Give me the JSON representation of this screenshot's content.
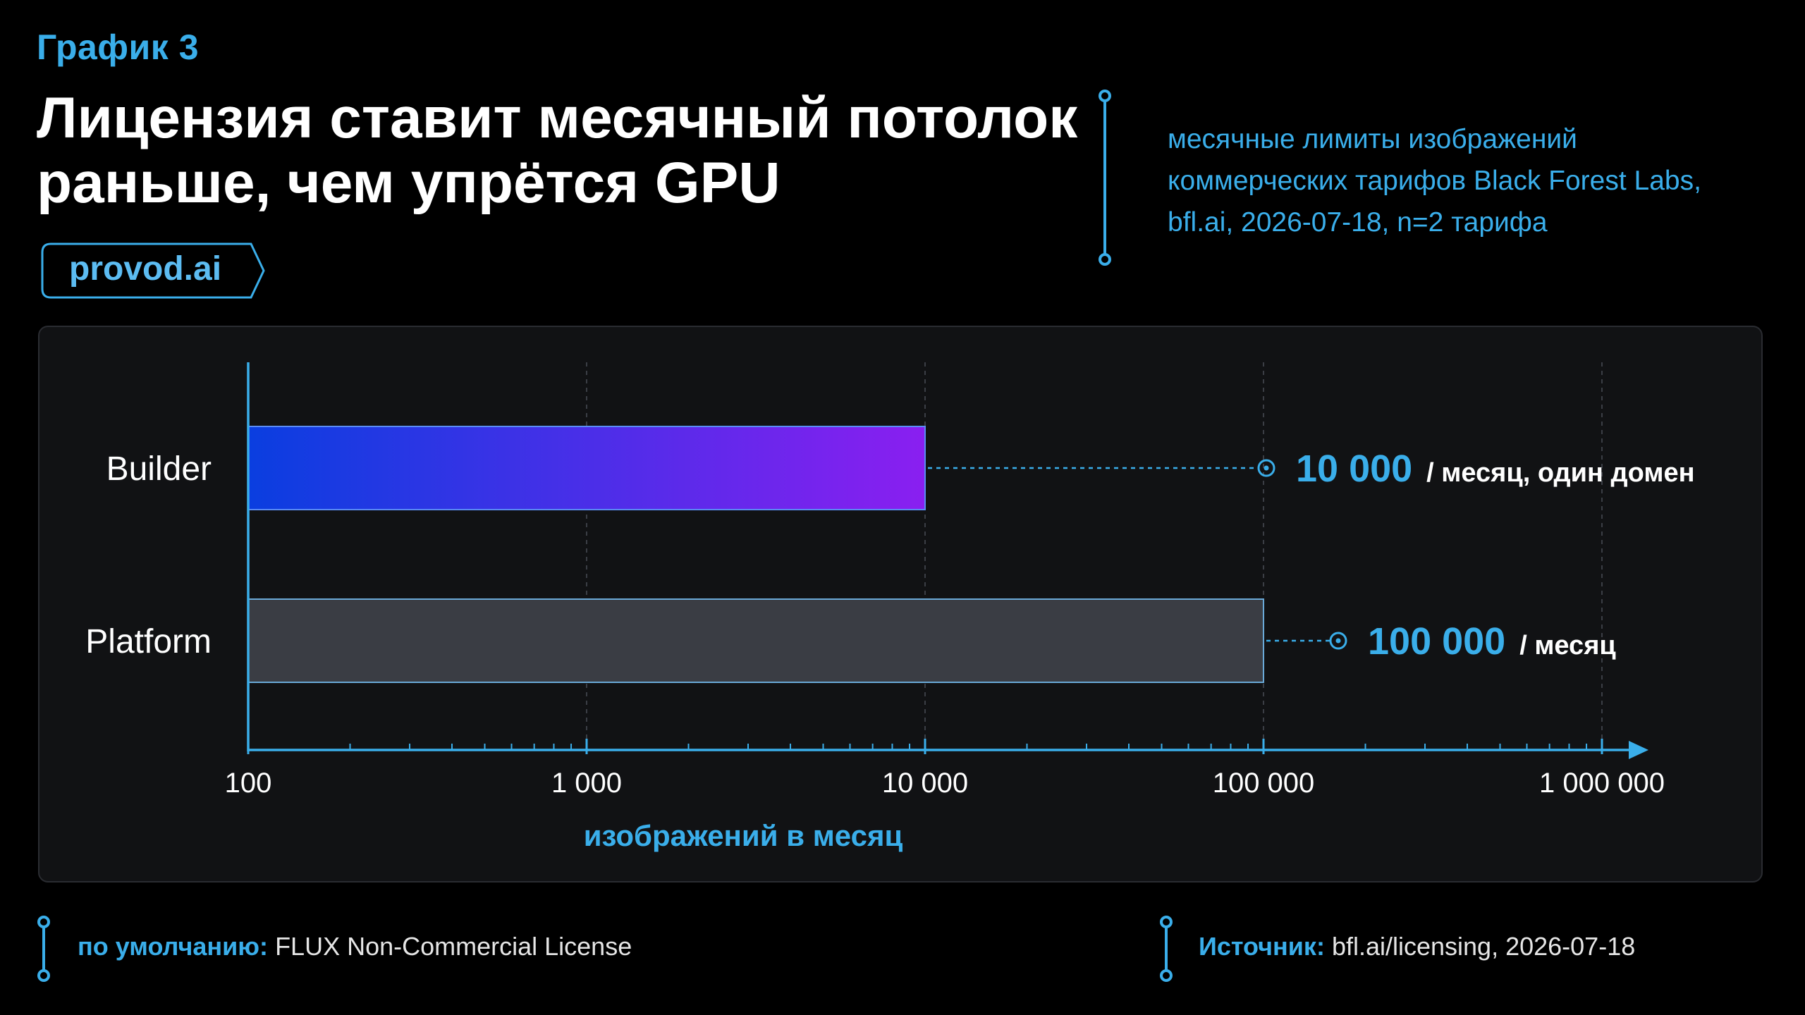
{
  "header": {
    "chart_label": "График 3",
    "title_line1": "Лицензия ставит месячный потолок",
    "title_line2": "раньше, чем упрётся GPU",
    "brand": "provod.ai",
    "note_line1": "месячные лимиты изображений",
    "note_line2": "коммерческих тарифов Black Forest Labs,",
    "note_line3": "bfl.ai, 2026-07-18, n=2 тарифа"
  },
  "footer": {
    "default_label": "по умолчанию:",
    "default_value": "FLUX Non-Commercial License",
    "source_label": "Источник:",
    "source_value": "bfl.ai/licensing, 2026-07-18"
  },
  "colors": {
    "accent": "#3aaeea",
    "builder_start": "#0a3ee0",
    "builder_end": "#8a1ff0",
    "platform": "#3a3d44"
  },
  "chart_data": {
    "type": "bar",
    "orientation": "horizontal",
    "categories": [
      "Builder",
      "Platform"
    ],
    "values": [
      10000,
      100000
    ],
    "value_labels": [
      "10 000",
      "100 000"
    ],
    "value_suffixes": [
      "/ месяц, один домен",
      "/ месяц"
    ],
    "xlabel": "изображений в месяц",
    "x_scale": "log",
    "xlim": [
      100,
      1000000
    ],
    "x_ticks": [
      100,
      1000,
      10000,
      100000,
      1000000
    ],
    "x_tick_labels": [
      "100",
      "1 000",
      "10 000",
      "100 000",
      "1 000 000"
    ],
    "grid": "vertical dashed at major ticks"
  }
}
